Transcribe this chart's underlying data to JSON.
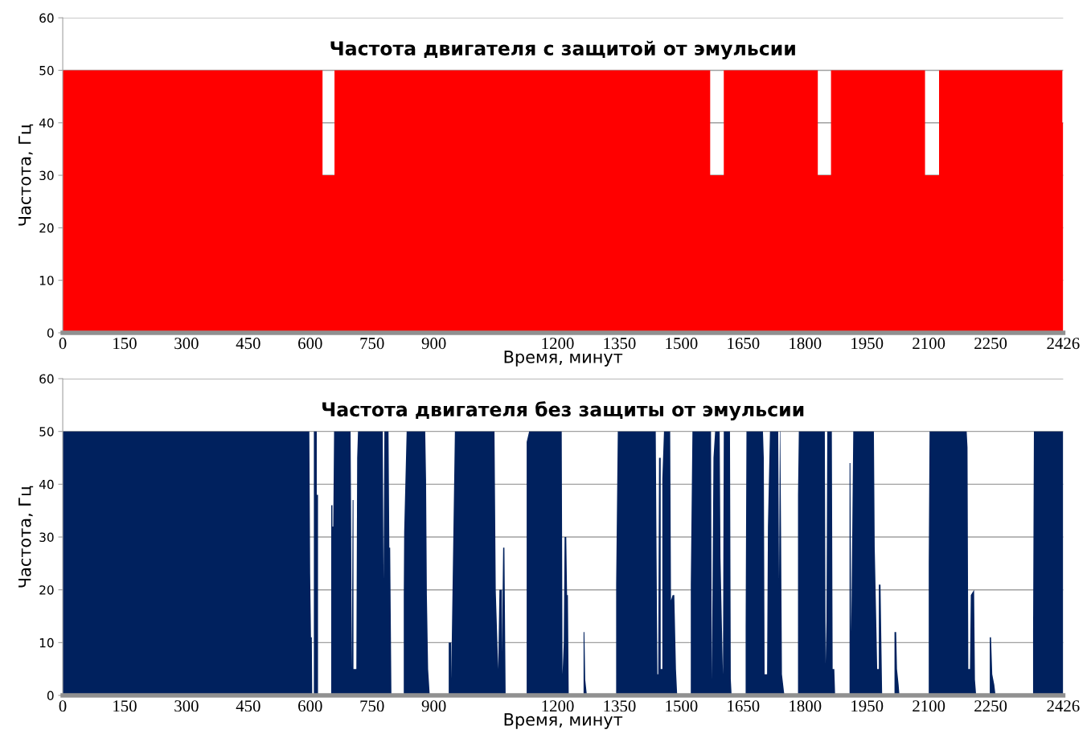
{
  "chart_data": [
    {
      "type": "area",
      "title": "Частота двигателя с защитой от эмульсии",
      "xlabel": "Время, минут",
      "ylabel": "Частота, Гц",
      "x": [
        0,
        630,
        630,
        659,
        659,
        1570,
        1570,
        1603,
        1603,
        1831,
        1831,
        1863,
        1863,
        2091,
        2091,
        2125,
        2125,
        2424,
        2424,
        2426
      ],
      "series": [
        {
          "color": "#ff0000",
          "values": [
            50,
            50,
            30,
            30,
            50,
            50,
            30,
            30,
            50,
            50,
            30,
            30,
            50,
            50,
            30,
            30,
            50,
            50,
            40,
            40
          ]
        }
      ],
      "xlim": [
        0,
        2426
      ],
      "xticks": [
        0,
        150,
        300,
        450,
        600,
        750,
        900,
        1200,
        1350,
        1500,
        1650,
        1800,
        1950,
        2100,
        2250,
        2426
      ],
      "ylim": [
        0,
        60
      ],
      "yticks": [
        0,
        10,
        20,
        30,
        40,
        50,
        60
      ],
      "grid": "y"
    },
    {
      "type": "area",
      "title": "Частота двигателя без защиты от эмульсии",
      "xlabel": "Время, минут",
      "ylabel": "Частота, Гц",
      "x": [
        0,
        598,
        600,
        602,
        604,
        605,
        609,
        609,
        616,
        616,
        619,
        619,
        651,
        651,
        654,
        654,
        656,
        658,
        698,
        699,
        701,
        703,
        705,
        705,
        712,
        714,
        716,
        776,
        778,
        780,
        790,
        792,
        794,
        797,
        827,
        827,
        828,
        834,
        879,
        881,
        883,
        886,
        890,
        936,
        936,
        942,
        942,
        951,
        1047,
        1050,
        1056,
        1059,
        1065,
        1065,
        1068,
        1071,
        1074,
        1125,
        1125,
        1131,
        1210,
        1212,
        1215,
        1217,
        1221,
        1223,
        1225,
        1227,
        1263,
        1263,
        1265,
        1267,
        1271,
        1342,
        1342,
        1346,
        1438,
        1440,
        1442,
        1444,
        1446,
        1450,
        1450,
        1454,
        1454,
        1458,
        1473,
        1475,
        1479,
        1483,
        1487,
        1490,
        1523,
        1523,
        1527,
        1572,
        1574,
        1578,
        1582,
        1593,
        1595,
        1599,
        1601,
        1603,
        1618,
        1620,
        1622,
        1656,
        1656,
        1658,
        1698,
        1700,
        1702,
        1708,
        1710,
        1715,
        1735,
        1737,
        1739,
        1740,
        1742,
        1744,
        1750,
        1783,
        1783,
        1785,
        1848,
        1850,
        1852,
        1854,
        1865,
        1867,
        1871,
        1873,
        1908,
        1908,
        1910,
        1912,
        1913,
        1917,
        1967,
        1969,
        1973,
        1975,
        1979,
        1979,
        1983,
        1987,
        2017,
        2017,
        2021,
        2023,
        2027,
        2029,
        2100,
        2100,
        2102,
        2192,
        2194,
        2196,
        2200,
        2202,
        2210,
        2212,
        2215,
        2248,
        2248,
        2251,
        2254,
        2259,
        2262,
        2353,
        2353,
        2355,
        2426
      ],
      "series": [
        {
          "color": "#00215e",
          "values": [
            50,
            50,
            23,
            11,
            11,
            0,
            0,
            50,
            50,
            38,
            38,
            0,
            0,
            36,
            36,
            32,
            32,
            50,
            50,
            37,
            5,
            37,
            37,
            5,
            5,
            45,
            50,
            50,
            22,
            50,
            50,
            28,
            28,
            0,
            0,
            19,
            31,
            50,
            50,
            41,
            19,
            5,
            0,
            0,
            10,
            10,
            3,
            50,
            50,
            20,
            5,
            20,
            20,
            8,
            28,
            28,
            0,
            0,
            48,
            50,
            50,
            4,
            10,
            30,
            30,
            19,
            19,
            0,
            0,
            12,
            12,
            3,
            0,
            0,
            21,
            50,
            50,
            26,
            4,
            4,
            45,
            45,
            5,
            5,
            41,
            50,
            50,
            18,
            19,
            19,
            5,
            0,
            0,
            21,
            50,
            50,
            3,
            45,
            50,
            50,
            26,
            11,
            4,
            50,
            50,
            3,
            0,
            0,
            13,
            50,
            50,
            45,
            4,
            4,
            32,
            50,
            50,
            22,
            50,
            50,
            30,
            4,
            0,
            0,
            38,
            50,
            50,
            6,
            14,
            50,
            50,
            5,
            5,
            0,
            0,
            44,
            44,
            12,
            19,
            50,
            50,
            28,
            13,
            5,
            5,
            21,
            21,
            0,
            0,
            12,
            12,
            5,
            2,
            0,
            0,
            25,
            50,
            50,
            47,
            5,
            5,
            19,
            20,
            3,
            0,
            0,
            11,
            11,
            4,
            2,
            0,
            0,
            12,
            50,
            50
          ]
        }
      ],
      "xlim": [
        0,
        2426
      ],
      "xticks": [
        0,
        150,
        300,
        450,
        600,
        750,
        900,
        1200,
        1350,
        1500,
        1650,
        1800,
        1950,
        2100,
        2250,
        2426
      ],
      "ylim": [
        0,
        60
      ],
      "yticks": [
        0,
        10,
        20,
        30,
        40,
        50,
        60
      ],
      "grid": "y"
    }
  ]
}
